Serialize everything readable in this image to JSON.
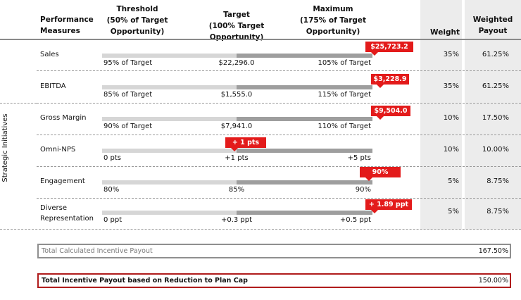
{
  "header": {
    "performance_measures": "Performance\nMeasures",
    "threshold": "Threshold\n(50% of Target\nOpportunity)",
    "target": "Target\n(100% Target Opportunity)",
    "maximum": "Maximum\n(175% of Target\nOpportunity)",
    "weight": "Weight",
    "weighted_payout": "Weighted\nPayout"
  },
  "strategic_label": "Strategic Initiatives",
  "rows": [
    {
      "measure": "Sales",
      "threshold": "95% of Target",
      "target": "$22,296.0",
      "maximum": "105% of Target",
      "actual": "$25,723.2",
      "weight": "35%",
      "payout": "61.25%"
    },
    {
      "measure": "EBITDA",
      "threshold": "85% of Target",
      "target": "$1,555.0",
      "maximum": "115% of Target",
      "actual": "$3,228.9",
      "weight": "35%",
      "payout": "61.25%"
    },
    {
      "measure": "Gross Margin",
      "threshold": "90% of Target",
      "target": "$7,941.0",
      "maximum": "110% of Target",
      "actual": "$9,504.0",
      "weight": "10%",
      "payout": "17.50%"
    },
    {
      "measure": "Omni-NPS",
      "threshold": "0 pts",
      "target": "+1 pts",
      "maximum": "+5 pts",
      "actual": "+ 1 pts",
      "weight": "10%",
      "payout": "10.00%"
    },
    {
      "measure": "Engagement",
      "threshold": "80%",
      "target": "85%",
      "maximum": "90%",
      "actual": "90%",
      "weight": "5%",
      "payout": "8.75%"
    },
    {
      "measure": "Diverse\nRepresentation",
      "threshold": "0 ppt",
      "target": "+0.3 ppt",
      "maximum": "+0.5 ppt",
      "actual": "+ 1.89 ppt",
      "weight": "5%",
      "payout": "8.75%"
    }
  ],
  "total_calculated": {
    "label": "Total Calculated Incentive Payout",
    "value": "167.50%"
  },
  "total_capped": {
    "label": "Total Incentive Payout based on Reduction to Plan Cap",
    "value": "150.00%"
  },
  "colors": {
    "flag": "#e31b1b",
    "bar_light": "#d6d6d6",
    "bar_dark": "#9e9e9e",
    "shade": "#ececec",
    "cap_border": "#b01c1c"
  }
}
